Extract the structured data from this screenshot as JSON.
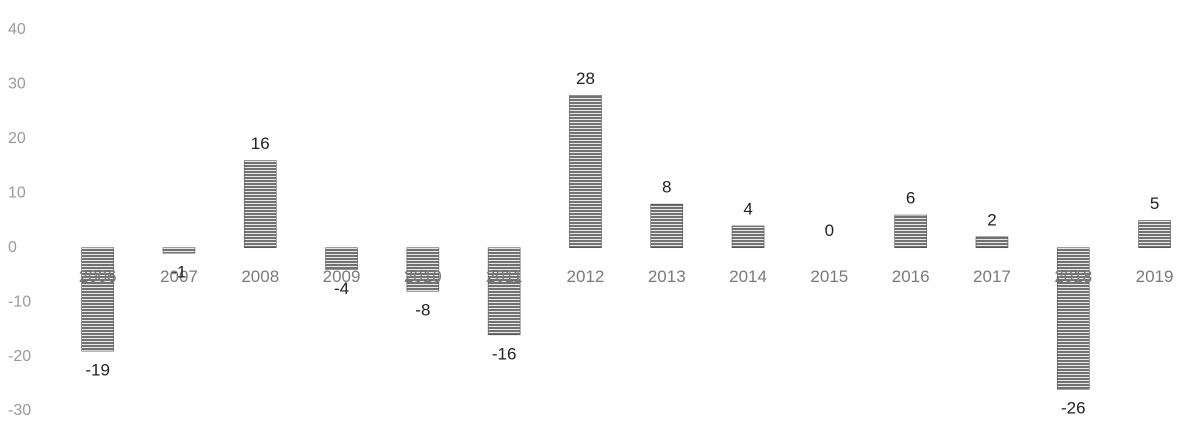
{
  "chart_data": {
    "type": "bar",
    "categories": [
      "2006",
      "2007",
      "2008",
      "2009",
      "2010",
      "2011",
      "2012",
      "2013",
      "2014",
      "2015",
      "2016",
      "2017",
      "2018",
      "2019"
    ],
    "values": [
      -19,
      -1,
      16,
      -4,
      -8,
      -16,
      28,
      8,
      4,
      0,
      6,
      2,
      -26,
      5
    ],
    "color": "#555555",
    "ylim": [
      -30,
      40
    ],
    "yticks": [
      -30,
      -20,
      -10,
      0,
      10,
      20,
      30,
      40
    ],
    "grid": false
  }
}
